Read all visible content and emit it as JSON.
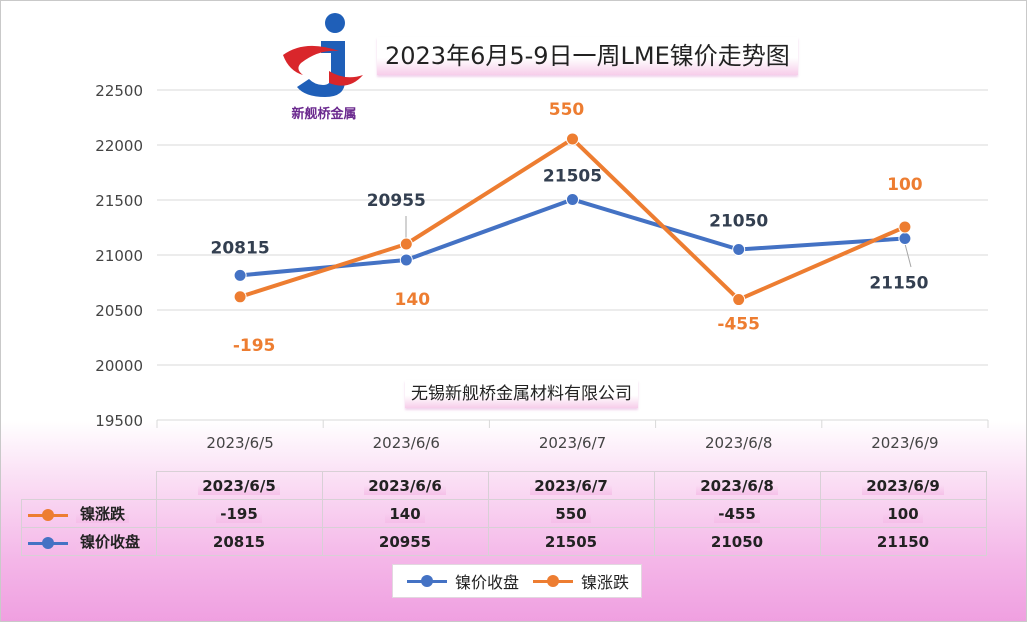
{
  "chart_data": {
    "type": "line",
    "title": "2023年6月5-9日一周LME镍价走势图",
    "categories": [
      "2023/6/5",
      "2023/6/6",
      "2023/6/7",
      "2023/6/8",
      "2023/6/9"
    ],
    "yticks": [
      19500,
      20000,
      20500,
      21000,
      21500,
      22000,
      22500
    ],
    "ylim": [
      19500,
      22500
    ],
    "grid": true,
    "legend_position": "bottom",
    "series": [
      {
        "name": "镍价收盘",
        "values": [
          20815,
          20955,
          21505,
          21050,
          21150
        ],
        "labels": [
          "20815",
          "20955",
          "21505",
          "21050",
          "21150"
        ],
        "color": "#4472c4"
      },
      {
        "name": "镍涨跌",
        "values": [
          -195,
          140,
          550,
          -455,
          100
        ],
        "plot_values": [
          20620,
          21100,
          22055,
          20595,
          21255
        ],
        "labels": [
          "-195",
          "140",
          "550",
          "-455",
          "100"
        ],
        "color": "#ed7d31"
      }
    ],
    "label_color_blue": "#333f50",
    "label_color_orange": "#ed7d31"
  },
  "logo": {
    "text": "新舰桥金属",
    "colors": {
      "blue": "#1f5fb8",
      "red": "#d9262b"
    }
  },
  "company": "无锡新舰桥金属材料有限公司",
  "table": {
    "headers": [
      "2023/6/5",
      "2023/6/6",
      "2023/6/7",
      "2023/6/8",
      "2023/6/9"
    ],
    "rows": [
      {
        "name": "镍涨跌",
        "color": "#ed7d31",
        "values": [
          "-195",
          "140",
          "550",
          "-455",
          "100"
        ]
      },
      {
        "name": "镍价收盘",
        "color": "#4472c4",
        "values": [
          "20815",
          "20955",
          "21505",
          "21050",
          "21150"
        ]
      }
    ]
  },
  "legend": [
    {
      "name": "镍价收盘",
      "color": "#4472c4"
    },
    {
      "name": "镍涨跌",
      "color": "#ed7d31"
    }
  ]
}
